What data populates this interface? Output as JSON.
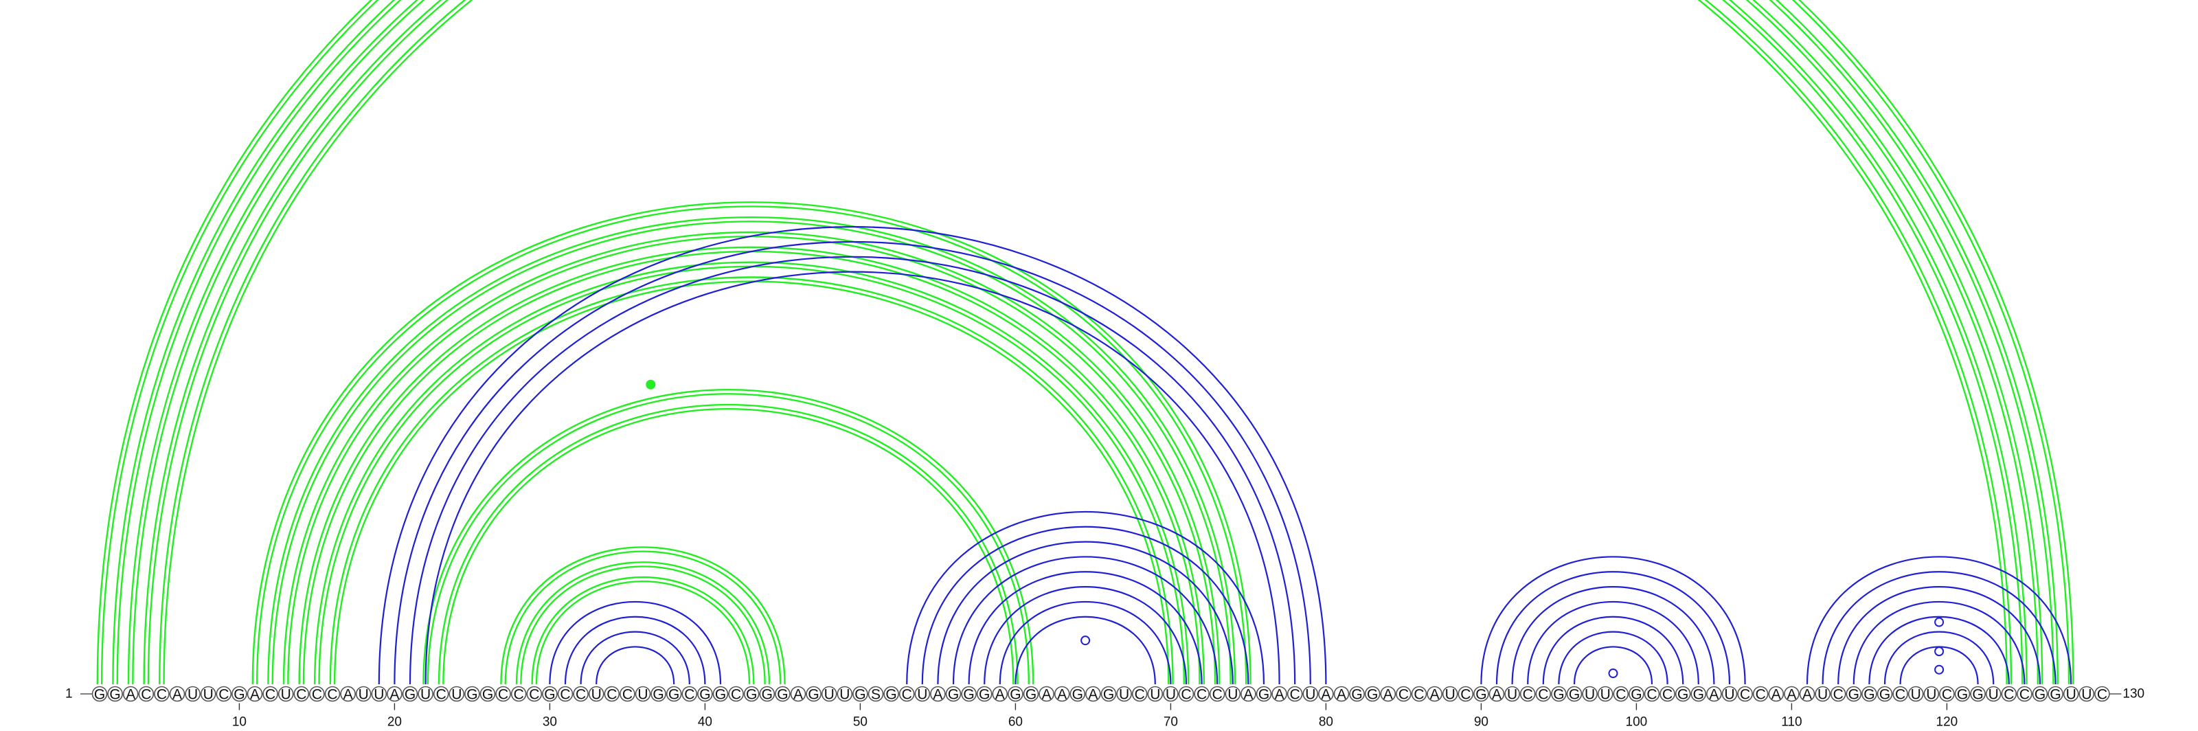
{
  "diagram": {
    "sequence": "GGACCAUUCGACUCCCAUUAGUCUGGCCCGCCUCCUGGCGGCGGGAGUUGSGCUAGGGAGGAAGAGUCUUCCCUAGACUAAGGACCAUCGAUCCGGUUCGCCGGAUCCAAAUCGGGCUUCGGUCCGGUUC",
    "start_label": "1",
    "end_label": "130",
    "tick_positions": [
      10,
      20,
      30,
      40,
      50,
      60,
      70,
      80,
      90,
      100,
      110,
      120
    ],
    "tick_labels": [
      "10",
      "20",
      "30",
      "40",
      "50",
      "60",
      "70",
      "80",
      "90",
      "100",
      "110",
      "120"
    ],
    "colors": {
      "green": "#22ee22",
      "blue": "#1f1fd6"
    },
    "arc_groups": [
      {
        "color": "green",
        "i_start": 1,
        "j_start": 128,
        "count": 5,
        "double": true
      },
      {
        "color": "green",
        "i_start": 11,
        "j_start": 75,
        "count": 6,
        "double": true
      },
      {
        "color": "green",
        "i_start": 22,
        "j_start": 61,
        "count": 2,
        "double": true
      },
      {
        "color": "green",
        "i_start": 27,
        "j_start": 45,
        "count": 3,
        "double": true
      },
      {
        "color": "blue",
        "i_start": 30,
        "j_start": 41,
        "count": 4,
        "double": false
      },
      {
        "color": "blue",
        "i_start": 19,
        "j_start": 80,
        "count": 4,
        "double": false
      },
      {
        "color": "blue",
        "i_start": 53,
        "j_start": 76,
        "count": 8,
        "double": false
      },
      {
        "color": "blue",
        "i_start": 90,
        "j_start": 107,
        "count": 7,
        "double": false
      },
      {
        "color": "blue",
        "i_start": 111,
        "j_start": 128,
        "count": 7,
        "double": false
      }
    ],
    "markers": [
      {
        "color": "green",
        "position": 36.5,
        "height": 0.41,
        "filled": true
      },
      {
        "color": "blue",
        "position": 64.5,
        "height": 0.06,
        "filled": false
      },
      {
        "color": "blue",
        "position": 98.5,
        "height": 0.015,
        "filled": false
      },
      {
        "color": "blue",
        "position": 119.5,
        "height": 0.02,
        "filled": false
      },
      {
        "color": "blue",
        "position": 119.5,
        "height": 0.045,
        "filled": false
      },
      {
        "color": "blue",
        "position": 119.5,
        "height": 0.085,
        "filled": false
      }
    ]
  }
}
